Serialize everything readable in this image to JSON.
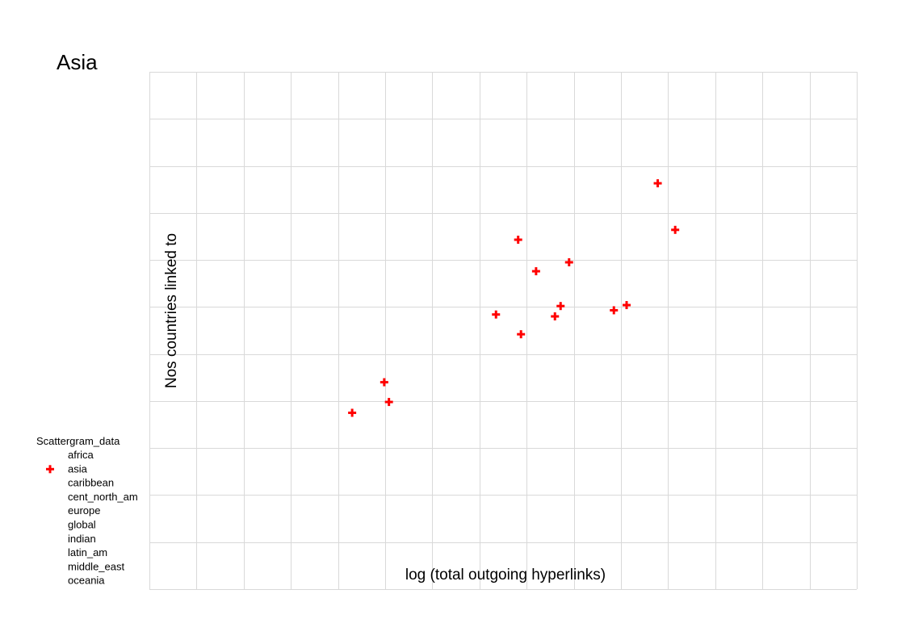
{
  "chart_data": {
    "type": "scatter",
    "title": "Asia",
    "xlabel": "log (total outgoing hyperlinks)",
    "ylabel": "Nos countries linked to",
    "grid": true,
    "legend": {
      "title": "Scattergram_data",
      "placement": "bottom-left",
      "entries": [
        {
          "name": "africa",
          "color": "",
          "marker": ""
        },
        {
          "name": "asia",
          "color": "#ff0000",
          "marker": "plus"
        },
        {
          "name": "caribbean",
          "color": "",
          "marker": ""
        },
        {
          "name": "cent_north_am",
          "color": "",
          "marker": ""
        },
        {
          "name": "europe",
          "color": "",
          "marker": ""
        },
        {
          "name": "global",
          "color": "",
          "marker": ""
        },
        {
          "name": "indian",
          "color": "",
          "marker": ""
        },
        {
          "name": "latin_am",
          "color": "",
          "marker": ""
        },
        {
          "name": "middle_east",
          "color": "",
          "marker": ""
        },
        {
          "name": "oceania",
          "color": "",
          "marker": ""
        }
      ]
    },
    "xlim": [
      0,
      15
    ],
    "ylim": [
      0,
      11
    ],
    "series": [
      {
        "name": "asia",
        "color": "#ff0000",
        "marker": "plus",
        "points": [
          {
            "x": 4.3,
            "y": 3.75
          },
          {
            "x": 4.98,
            "y": 4.4
          },
          {
            "x": 5.08,
            "y": 3.98
          },
          {
            "x": 7.35,
            "y": 5.84
          },
          {
            "x": 7.82,
            "y": 7.43
          },
          {
            "x": 7.88,
            "y": 5.42
          },
          {
            "x": 8.2,
            "y": 6.76
          },
          {
            "x": 8.6,
            "y": 5.8
          },
          {
            "x": 8.72,
            "y": 6.02
          },
          {
            "x": 8.9,
            "y": 6.95
          },
          {
            "x": 9.85,
            "y": 5.93
          },
          {
            "x": 10.12,
            "y": 6.04
          },
          {
            "x": 10.78,
            "y": 8.63
          },
          {
            "x": 11.15,
            "y": 7.64
          }
        ]
      }
    ]
  }
}
